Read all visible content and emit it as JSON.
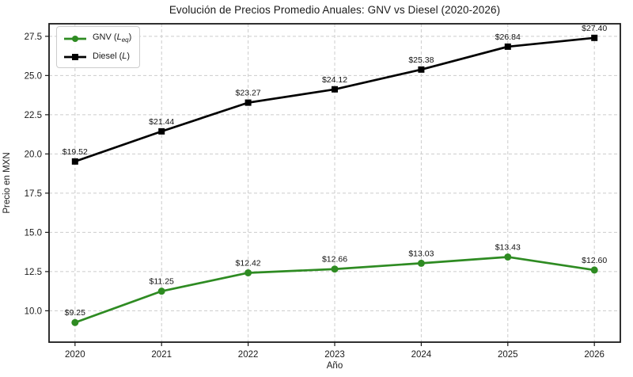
{
  "chart_data": {
    "type": "line",
    "title": "Evolución de Precios Promedio Anuales: GNV vs Diesel (2020-2026)",
    "xlabel": "Año",
    "ylabel": "Precio en MXN",
    "x": [
      2020,
      2021,
      2022,
      2023,
      2024,
      2025,
      2026
    ],
    "x_tick_labels": [
      "2020",
      "2021",
      "2022",
      "2023",
      "2024",
      "2025",
      "2026"
    ],
    "y_ticks": [
      10.0,
      12.5,
      15.0,
      17.5,
      20.0,
      22.5,
      25.0,
      27.5
    ],
    "y_tick_labels": [
      "10.0",
      "12.5",
      "15.0",
      "17.5",
      "20.0",
      "22.5",
      "25.0",
      "27.5"
    ],
    "xlim": [
      2019.7,
      2026.3
    ],
    "ylim": [
      8.0,
      28.3
    ],
    "grid": true,
    "grid_style": "dashed",
    "legend_position": "upper-left",
    "series": [
      {
        "name": "gnv",
        "legend": {
          "prefix": "GNV (",
          "symbol": "L",
          "subscript": "eq",
          "suffix": ")"
        },
        "color": "#2e8b22",
        "marker": "circle",
        "values": [
          9.25,
          11.25,
          12.42,
          12.66,
          13.03,
          13.43,
          12.6
        ],
        "labels": [
          "$9.25",
          "$11.25",
          "$12.42",
          "$12.66",
          "$13.03",
          "$13.43",
          "$12.60"
        ]
      },
      {
        "name": "diesel",
        "legend": {
          "prefix": "Diesel (",
          "symbol": "L",
          "subscript": "",
          "suffix": ")"
        },
        "color": "#000000",
        "marker": "square",
        "values": [
          19.52,
          21.44,
          23.27,
          24.12,
          25.38,
          26.84,
          27.4
        ],
        "labels": [
          "$19.52",
          "$21.44",
          "$23.27",
          "$24.12",
          "$25.38",
          "$26.84",
          "$27.40"
        ]
      }
    ],
    "colors": {
      "background": "#ffffff",
      "grid": "#cccccc",
      "spine": "#1a1a1a",
      "text": "#1a1a1a"
    }
  }
}
